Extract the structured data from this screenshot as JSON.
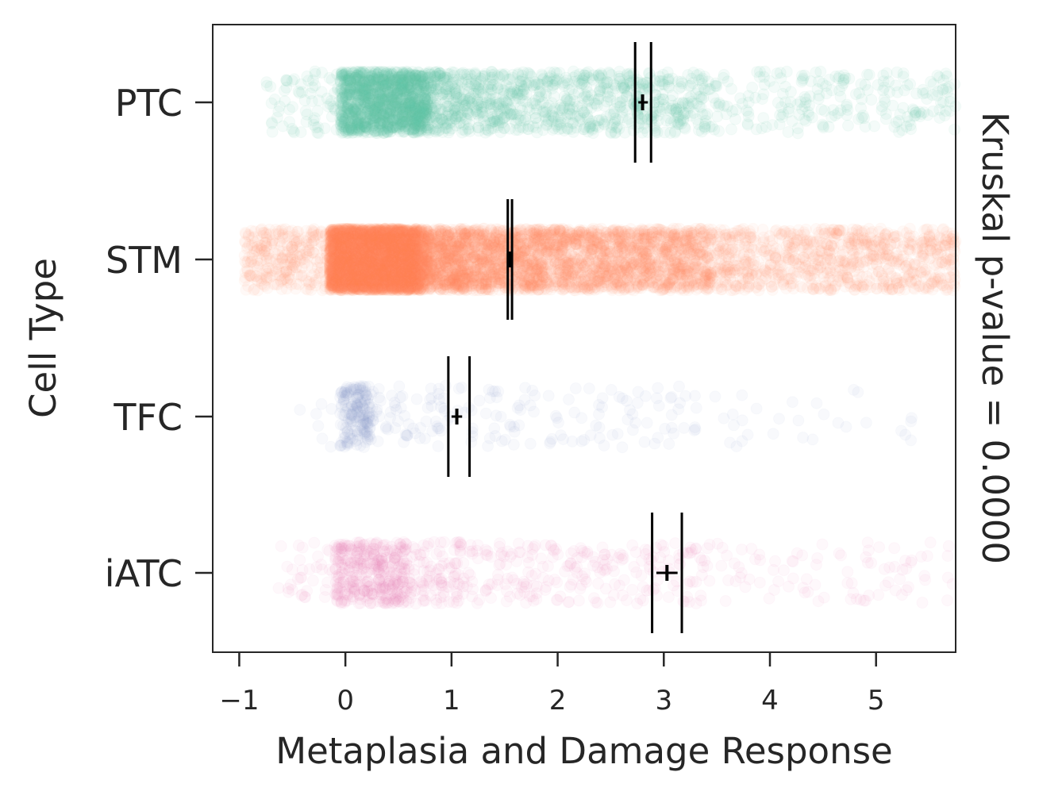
{
  "chart_data": {
    "type": "scatter",
    "subtype": "strip-plot",
    "orientation": "horizontal",
    "xlabel": "Metaplasia and Damage Response",
    "ylabel": "Cell Type",
    "right_annotation": "Kruskal p-value = 0.0000",
    "xlim": [
      -1.25,
      5.75
    ],
    "xticks": [
      -1,
      0,
      1,
      2,
      3,
      4,
      5
    ],
    "xtick_labels": [
      "−1",
      "0",
      "1",
      "2",
      "3",
      "4",
      "5"
    ],
    "categories": [
      "PTC",
      "STM",
      "TFC",
      "iATC"
    ],
    "grid": false,
    "legend": "none",
    "series": [
      {
        "name": "PTC",
        "color": "#66c2a5",
        "point_count": 2600,
        "mean": 2.8,
        "mean_ci": [
          2.76,
          2.85
        ],
        "interval": [
          2.73,
          2.88
        ],
        "range_observed": [
          -0.75,
          5.75
        ],
        "dense_core": [
          -0.05,
          0.75
        ]
      },
      {
        "name": "STM",
        "color": "#fc8d62",
        "point_count": 9000,
        "mean": 1.55,
        "mean_ci": [
          1.53,
          1.57
        ],
        "interval": [
          1.53,
          1.57
        ],
        "range_observed": [
          -0.95,
          5.75
        ],
        "dense_core": [
          -0.15,
          0.65
        ]
      },
      {
        "name": "TFC",
        "color": "#8da0cb",
        "point_count": 380,
        "mean": 1.05,
        "mean_ci": [
          1.0,
          1.1
        ],
        "interval": [
          0.97,
          1.17
        ],
        "range_observed": [
          -0.45,
          5.55
        ],
        "dense_core": [
          -0.05,
          0.25
        ]
      },
      {
        "name": "iATC",
        "color": "#e78ac3",
        "point_count": 850,
        "mean": 3.03,
        "mean_ci": [
          2.93,
          3.13
        ],
        "interval": [
          2.89,
          3.17
        ],
        "range_observed": [
          -0.65,
          5.75
        ],
        "dense_core": [
          -0.1,
          0.55
        ]
      }
    ]
  }
}
